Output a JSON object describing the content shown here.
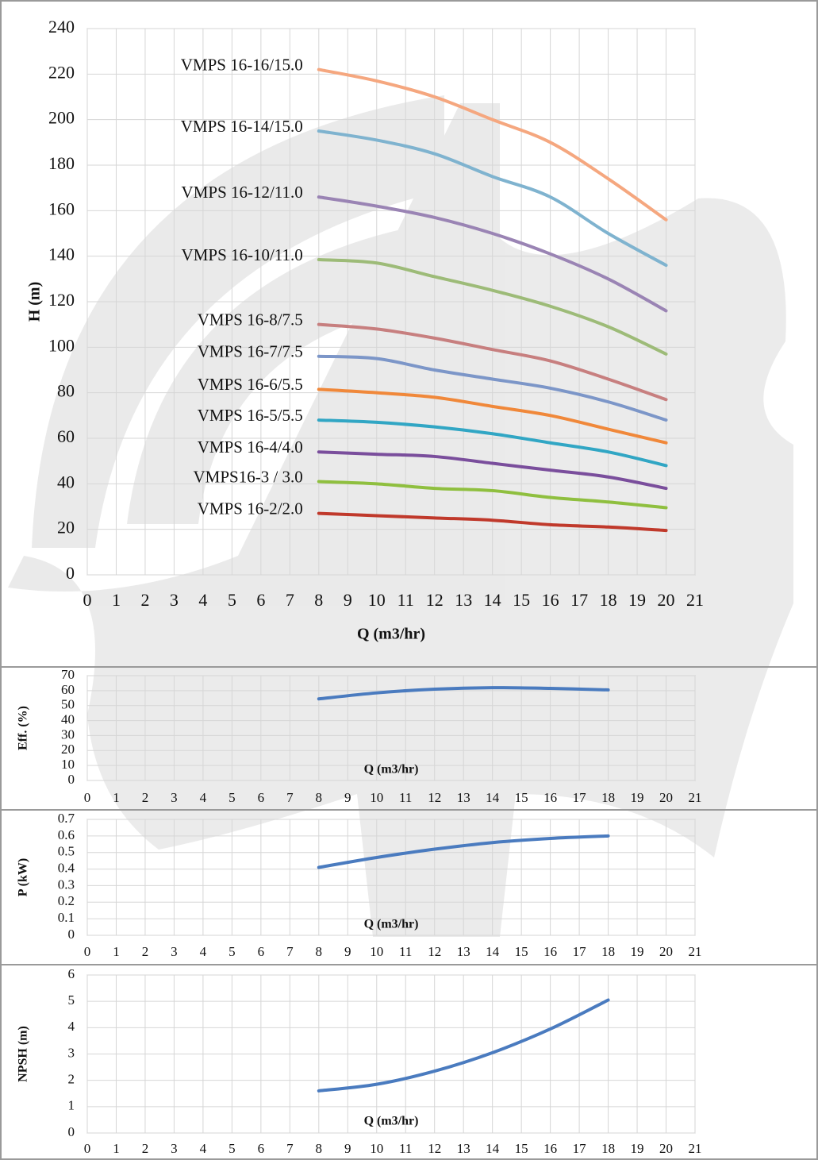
{
  "chart_data": [
    {
      "type": "line",
      "x_label": "Q (m3/hr)",
      "y_label": "H  (m)",
      "x": [
        8,
        10,
        12,
        14,
        16,
        18,
        20
      ],
      "xlim": [
        0,
        21
      ],
      "xticks": [
        0,
        1,
        2,
        3,
        4,
        5,
        6,
        7,
        8,
        9,
        10,
        11,
        12,
        13,
        14,
        15,
        16,
        17,
        18,
        19,
        20,
        21
      ],
      "ylim": [
        0,
        240
      ],
      "yticks": [
        0,
        20,
        40,
        60,
        80,
        100,
        120,
        140,
        160,
        180,
        200,
        220,
        240
      ],
      "grid": true,
      "series": [
        {
          "name": "VMPS 16-16/15.0",
          "color": "#f5a77f",
          "values": [
            222,
            217,
            210,
            200,
            190,
            174,
            156
          ]
        },
        {
          "name": "VMPS 16-14/15.0",
          "color": "#7fb3cf",
          "values": [
            195,
            191,
            185,
            175,
            166,
            150,
            136
          ]
        },
        {
          "name": "VMPS 16-12/11.0",
          "color": "#9a84b4",
          "values": [
            166,
            162,
            157,
            150,
            141,
            130,
            116
          ]
        },
        {
          "name": "VMPS 16-10/11.0",
          "color": "#9dbb78",
          "values": [
            138.5,
            137,
            131,
            125,
            118,
            109,
            97
          ]
        },
        {
          "name": "VMPS 16-8/7.5",
          "color": "#c77f7f",
          "values": [
            110,
            108,
            104,
            99,
            94,
            86,
            77
          ]
        },
        {
          "name": "VMPS 16-7/7.5",
          "color": "#7c96c8",
          "values": [
            96,
            95,
            90,
            86,
            82,
            76,
            68
          ]
        },
        {
          "name": "VMPS 16-6/5.5",
          "color": "#f0883a",
          "values": [
            81.5,
            80,
            78,
            74,
            70,
            64,
            58
          ]
        },
        {
          "name": "VMPS 16-5/5.5",
          "color": "#31a6c4",
          "values": [
            68,
            67,
            65,
            62,
            58,
            54,
            48
          ]
        },
        {
          "name": "VMPS 16-4/4.0",
          "color": "#7a4e9c",
          "values": [
            54,
            53,
            52,
            49,
            46,
            43,
            38
          ]
        },
        {
          "name": "VMPS16-3 / 3.0",
          "color": "#8fbf3f",
          "values": [
            41,
            40,
            38,
            37,
            34,
            32,
            29.5
          ]
        },
        {
          "name": "VMPS 16-2/2.0",
          "color": "#c0392b",
          "values": [
            27,
            26,
            25,
            24,
            22,
            21,
            19.5
          ]
        }
      ]
    },
    {
      "type": "line",
      "x_label": "Q (m3/hr)",
      "y_label": "Eff. (%)",
      "x": [
        8,
        10,
        12,
        14,
        16,
        18
      ],
      "xlim": [
        0,
        21
      ],
      "xticks": [
        0,
        1,
        2,
        3,
        4,
        5,
        6,
        7,
        8,
        9,
        10,
        11,
        12,
        13,
        14,
        15,
        16,
        17,
        18,
        19,
        20,
        21
      ],
      "ylim": [
        0,
        70
      ],
      "yticks": [
        0,
        10,
        20,
        30,
        40,
        50,
        60,
        70
      ],
      "grid": true,
      "series": [
        {
          "color": "#4a7bbf",
          "values": [
            54.5,
            58.5,
            61,
            62,
            61.5,
            60.5
          ]
        }
      ]
    },
    {
      "type": "line",
      "x_label": "Q (m3/hr)",
      "y_label": "P (kW)",
      "x": [
        8,
        10,
        12,
        14,
        16,
        18
      ],
      "xlim": [
        0,
        21
      ],
      "xticks": [
        0,
        1,
        2,
        3,
        4,
        5,
        6,
        7,
        8,
        9,
        10,
        11,
        12,
        13,
        14,
        15,
        16,
        17,
        18,
        19,
        20,
        21
      ],
      "ylim": [
        0,
        0.7
      ],
      "yticks": [
        0,
        0.1,
        0.2,
        0.3,
        0.4,
        0.5,
        0.6,
        0.7
      ],
      "grid": true,
      "series": [
        {
          "color": "#4a7bbf",
          "values": [
            0.41,
            0.47,
            0.52,
            0.56,
            0.585,
            0.6
          ]
        }
      ]
    },
    {
      "type": "line",
      "x_label": "Q (m3/hr)",
      "y_label": "NPSH (m)",
      "x": [
        8,
        10,
        12,
        14,
        16,
        18
      ],
      "xlim": [
        0,
        21
      ],
      "xticks": [
        0,
        1,
        2,
        3,
        4,
        5,
        6,
        7,
        8,
        9,
        10,
        11,
        12,
        13,
        14,
        15,
        16,
        17,
        18,
        19,
        20,
        21
      ],
      "ylim": [
        0,
        6
      ],
      "yticks": [
        0,
        1,
        2,
        3,
        4,
        5,
        6
      ],
      "grid": true,
      "series": [
        {
          "color": "#4a7bbf",
          "values": [
            1.6,
            1.85,
            2.35,
            3.05,
            3.95,
            5.05
          ]
        }
      ]
    }
  ]
}
